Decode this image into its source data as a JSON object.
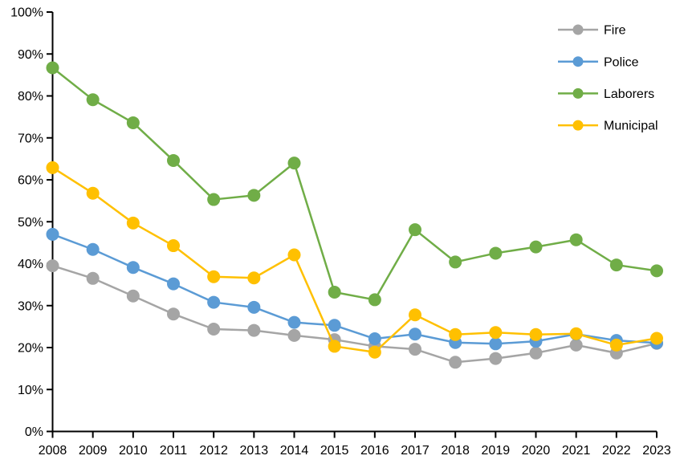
{
  "chart_data": {
    "type": "line",
    "title": "",
    "xlabel": "",
    "ylabel": "",
    "grid": false,
    "legend_position": "top-right-inside",
    "ylim": [
      0,
      100
    ],
    "ytick_step": 10,
    "ytick_labels": [
      "0%",
      "10%",
      "20%",
      "30%",
      "40%",
      "50%",
      "60%",
      "70%",
      "80%",
      "90%",
      "100%"
    ],
    "x_labels": [
      "2008",
      "2009",
      "2010",
      "2011",
      "2012",
      "2013",
      "2014",
      "2015",
      "2016",
      "2017",
      "2018",
      "2019",
      "2020",
      "2021",
      "2022",
      "2023"
    ],
    "axis_color": "#000000",
    "background_color": "#ffffff",
    "marker": "circle",
    "series": [
      {
        "name": "Fire",
        "color": "#A5A5A5",
        "values": [
          39.5,
          36.5,
          32.3,
          28.0,
          24.4,
          24.1,
          22.9,
          21.9,
          20.3,
          19.6,
          16.5,
          17.4,
          18.7,
          20.6,
          18.7,
          21.0
        ]
      },
      {
        "name": "Police",
        "color": "#5B9BD5",
        "values": [
          47.0,
          43.4,
          39.1,
          35.2,
          30.8,
          29.6,
          26.0,
          25.3,
          22.1,
          23.2,
          21.2,
          20.9,
          21.5,
          23.2,
          21.7,
          21.1
        ]
      },
      {
        "name": "Laborers",
        "color": "#70AD47",
        "values": [
          86.7,
          79.1,
          73.6,
          64.6,
          55.3,
          56.3,
          64.0,
          33.2,
          31.4,
          48.1,
          40.4,
          42.5,
          44.0,
          45.7,
          39.7,
          38.3
        ]
      },
      {
        "name": "Municipal",
        "color": "#FFC000",
        "values": [
          62.9,
          56.8,
          49.7,
          44.3,
          36.9,
          36.6,
          42.1,
          20.3,
          18.9,
          27.8,
          23.1,
          23.6,
          23.1,
          23.3,
          20.6,
          22.2
        ]
      }
    ],
    "legend_order": [
      "Fire",
      "Police",
      "Laborers",
      "Municipal"
    ]
  }
}
